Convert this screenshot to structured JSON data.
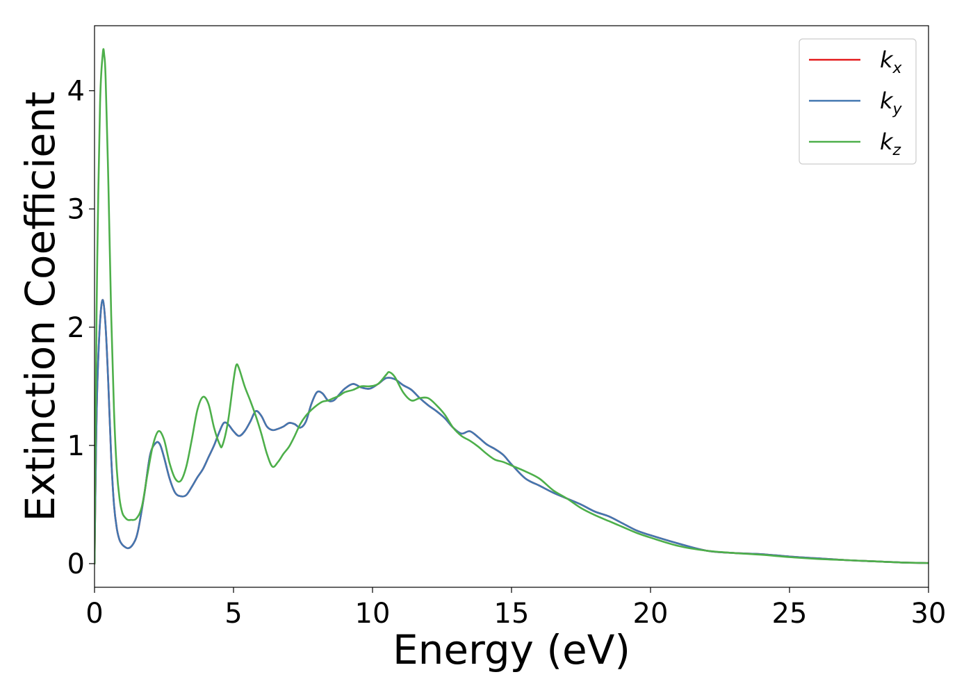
{
  "chart_data": {
    "type": "line",
    "title": "",
    "xlabel": "Energy (eV)",
    "ylabel": "Extinction Coefficient",
    "xlim": [
      0,
      30
    ],
    "ylim": [
      -0.2,
      4.55
    ],
    "xticks": [
      0,
      5,
      10,
      15,
      20,
      25,
      30
    ],
    "yticks": [
      0,
      1,
      2,
      3,
      4
    ],
    "grid": false,
    "legend_position": "top-right",
    "series": [
      {
        "name": "k",
        "subscript": "x",
        "color": "#e41a1c",
        "x": [
          0,
          0.05,
          0.1,
          0.2,
          0.3,
          0.4,
          0.5,
          0.6,
          0.7,
          0.8,
          0.9,
          1.0,
          1.1,
          1.2,
          1.3,
          1.4,
          1.5,
          1.6,
          1.8,
          2.0,
          2.2,
          2.35,
          2.5,
          2.7,
          2.9,
          3.1,
          3.3,
          3.5,
          3.7,
          3.9,
          4.1,
          4.3,
          4.5,
          4.65,
          4.8,
          5.0,
          5.2,
          5.4,
          5.6,
          5.8,
          6.0,
          6.2,
          6.4,
          6.6,
          6.8,
          7.0,
          7.2,
          7.4,
          7.6,
          7.8,
          8.0,
          8.2,
          8.4,
          8.6,
          8.8,
          9.0,
          9.3,
          9.6,
          9.9,
          10.2,
          10.5,
          10.8,
          11.1,
          11.4,
          11.7,
          12.0,
          12.3,
          12.6,
          12.9,
          13.2,
          13.5,
          13.8,
          14.1,
          14.4,
          14.7,
          15.0,
          15.5,
          16.0,
          16.5,
          17.0,
          17.5,
          18.0,
          18.5,
          19.0,
          19.5,
          20.0,
          21.0,
          22.0,
          23.0,
          24.0,
          25.0,
          26.0,
          27.0,
          28.0,
          29.0,
          30.0
        ],
        "y": [
          0.0,
          0.9,
          1.5,
          2.05,
          2.23,
          2.0,
          1.5,
          0.9,
          0.5,
          0.3,
          0.2,
          0.16,
          0.14,
          0.13,
          0.14,
          0.17,
          0.22,
          0.32,
          0.6,
          0.92,
          1.02,
          1.01,
          0.9,
          0.72,
          0.6,
          0.57,
          0.58,
          0.65,
          0.73,
          0.8,
          0.9,
          1.0,
          1.12,
          1.19,
          1.18,
          1.12,
          1.08,
          1.12,
          1.2,
          1.29,
          1.25,
          1.16,
          1.13,
          1.14,
          1.16,
          1.19,
          1.18,
          1.15,
          1.2,
          1.35,
          1.45,
          1.44,
          1.38,
          1.38,
          1.43,
          1.48,
          1.52,
          1.49,
          1.48,
          1.52,
          1.57,
          1.56,
          1.51,
          1.47,
          1.4,
          1.34,
          1.29,
          1.23,
          1.15,
          1.1,
          1.12,
          1.07,
          1.01,
          0.97,
          0.92,
          0.84,
          0.72,
          0.66,
          0.6,
          0.55,
          0.5,
          0.44,
          0.4,
          0.34,
          0.28,
          0.24,
          0.17,
          0.11,
          0.09,
          0.08,
          0.06,
          0.045,
          0.03,
          0.02,
          0.01,
          0.005
        ]
      },
      {
        "name": "k",
        "subscript": "y",
        "color": "#4277b0",
        "x": [
          0,
          0.05,
          0.1,
          0.2,
          0.3,
          0.4,
          0.5,
          0.6,
          0.7,
          0.8,
          0.9,
          1.0,
          1.1,
          1.2,
          1.3,
          1.4,
          1.5,
          1.6,
          1.8,
          2.0,
          2.2,
          2.35,
          2.5,
          2.7,
          2.9,
          3.1,
          3.3,
          3.5,
          3.7,
          3.9,
          4.1,
          4.3,
          4.5,
          4.65,
          4.8,
          5.0,
          5.2,
          5.4,
          5.6,
          5.8,
          6.0,
          6.2,
          6.4,
          6.6,
          6.8,
          7.0,
          7.2,
          7.4,
          7.6,
          7.8,
          8.0,
          8.2,
          8.4,
          8.6,
          8.8,
          9.0,
          9.3,
          9.6,
          9.9,
          10.2,
          10.5,
          10.8,
          11.1,
          11.4,
          11.7,
          12.0,
          12.3,
          12.6,
          12.9,
          13.2,
          13.5,
          13.8,
          14.1,
          14.4,
          14.7,
          15.0,
          15.5,
          16.0,
          16.5,
          17.0,
          17.5,
          18.0,
          18.5,
          19.0,
          19.5,
          20.0,
          21.0,
          22.0,
          23.0,
          24.0,
          25.0,
          26.0,
          27.0,
          28.0,
          29.0,
          30.0
        ],
        "y": [
          0.0,
          0.9,
          1.5,
          2.05,
          2.23,
          2.0,
          1.5,
          0.9,
          0.5,
          0.3,
          0.2,
          0.16,
          0.14,
          0.13,
          0.14,
          0.17,
          0.22,
          0.32,
          0.6,
          0.92,
          1.02,
          1.01,
          0.9,
          0.72,
          0.6,
          0.57,
          0.58,
          0.65,
          0.73,
          0.8,
          0.9,
          1.0,
          1.12,
          1.19,
          1.18,
          1.12,
          1.08,
          1.12,
          1.2,
          1.29,
          1.25,
          1.16,
          1.13,
          1.14,
          1.16,
          1.19,
          1.18,
          1.15,
          1.2,
          1.35,
          1.45,
          1.44,
          1.38,
          1.38,
          1.43,
          1.48,
          1.52,
          1.49,
          1.48,
          1.52,
          1.57,
          1.56,
          1.51,
          1.47,
          1.4,
          1.34,
          1.29,
          1.23,
          1.15,
          1.1,
          1.12,
          1.07,
          1.01,
          0.97,
          0.92,
          0.84,
          0.72,
          0.66,
          0.6,
          0.55,
          0.5,
          0.44,
          0.4,
          0.34,
          0.28,
          0.24,
          0.17,
          0.11,
          0.09,
          0.08,
          0.06,
          0.045,
          0.03,
          0.02,
          0.01,
          0.005
        ]
      },
      {
        "name": "k",
        "subscript": "z",
        "color": "#4daf4a",
        "x": [
          0,
          0.05,
          0.1,
          0.2,
          0.3,
          0.35,
          0.4,
          0.5,
          0.6,
          0.7,
          0.8,
          0.9,
          1.0,
          1.1,
          1.2,
          1.3,
          1.5,
          1.7,
          1.9,
          2.1,
          2.3,
          2.5,
          2.7,
          2.9,
          3.1,
          3.3,
          3.5,
          3.7,
          3.9,
          4.1,
          4.3,
          4.5,
          4.6,
          4.8,
          5.0,
          5.1,
          5.2,
          5.4,
          5.6,
          5.8,
          6.0,
          6.2,
          6.4,
          6.6,
          6.8,
          7.0,
          7.2,
          7.4,
          7.6,
          7.8,
          8.0,
          8.2,
          8.4,
          8.6,
          8.8,
          9.0,
          9.3,
          9.6,
          9.9,
          10.2,
          10.5,
          10.6,
          10.8,
          11.1,
          11.4,
          11.7,
          12.0,
          12.3,
          12.6,
          12.9,
          13.2,
          13.5,
          13.8,
          14.1,
          14.4,
          14.7,
          15.0,
          15.5,
          16.0,
          16.5,
          17.0,
          17.5,
          18.0,
          18.5,
          19.0,
          19.5,
          20.0,
          21.0,
          22.0,
          23.0,
          24.0,
          25.0,
          26.0,
          27.0,
          28.0,
          29.0,
          30.0
        ],
        "y": [
          0.0,
          1.5,
          2.6,
          3.9,
          4.32,
          4.3,
          4.1,
          3.2,
          2.1,
          1.3,
          0.8,
          0.55,
          0.43,
          0.39,
          0.37,
          0.37,
          0.38,
          0.48,
          0.75,
          1.0,
          1.12,
          1.05,
          0.85,
          0.72,
          0.7,
          0.82,
          1.05,
          1.3,
          1.41,
          1.35,
          1.15,
          1.01,
          1.0,
          1.2,
          1.55,
          1.68,
          1.65,
          1.5,
          1.38,
          1.25,
          1.1,
          0.93,
          0.82,
          0.86,
          0.93,
          0.99,
          1.08,
          1.18,
          1.25,
          1.3,
          1.34,
          1.37,
          1.38,
          1.4,
          1.42,
          1.45,
          1.47,
          1.5,
          1.5,
          1.52,
          1.6,
          1.62,
          1.58,
          1.45,
          1.38,
          1.4,
          1.4,
          1.34,
          1.26,
          1.15,
          1.08,
          1.04,
          0.99,
          0.93,
          0.88,
          0.86,
          0.83,
          0.78,
          0.72,
          0.62,
          0.55,
          0.47,
          0.41,
          0.36,
          0.31,
          0.26,
          0.22,
          0.15,
          0.11,
          0.09,
          0.075,
          0.055,
          0.04,
          0.03,
          0.02,
          0.01,
          0.005
        ]
      }
    ]
  }
}
